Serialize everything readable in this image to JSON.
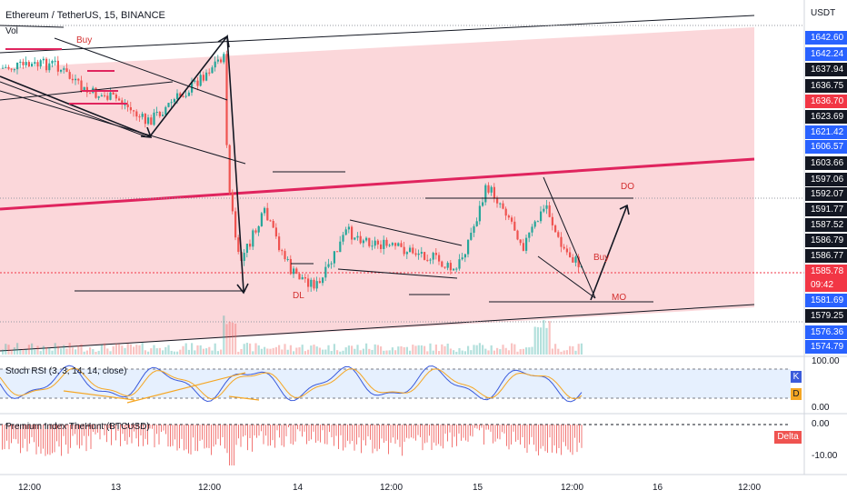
{
  "chart": {
    "symbol_title": "Ethereum / TetherUS, 15, BINANCE",
    "volume_label": "Vol",
    "currency": "USDT"
  },
  "price_axis_labels": [
    {
      "value": "1642.60",
      "kind": "blue"
    },
    {
      "value": "1642.24",
      "kind": "blue"
    },
    {
      "value": "1637.94",
      "kind": "black"
    },
    {
      "value": "1636.75",
      "kind": "black"
    },
    {
      "value": "1636.70",
      "kind": "pink"
    },
    {
      "value": "1623.69",
      "kind": "black"
    },
    {
      "value": "1621.42",
      "kind": "blue"
    },
    {
      "value": "1606.57",
      "kind": "blue"
    },
    {
      "value": "1603.66",
      "kind": "black"
    },
    {
      "value": "1597.06",
      "kind": "black"
    },
    {
      "value": "1592.07",
      "kind": "black"
    },
    {
      "value": "1591.77",
      "kind": "black"
    },
    {
      "value": "1587.52",
      "kind": "black"
    },
    {
      "value": "1586.79",
      "kind": "black"
    },
    {
      "value": "1586.77",
      "kind": "black"
    },
    {
      "value": "1585.78",
      "kind": "red"
    },
    {
      "value": "09:42",
      "kind": "red"
    },
    {
      "value": "1581.69",
      "kind": "blue"
    },
    {
      "value": "1579.25",
      "kind": "black"
    },
    {
      "value": "1576.36",
      "kind": "blue"
    },
    {
      "value": "1574.79",
      "kind": "blue"
    }
  ],
  "annotations": {
    "buy_top": "Buy",
    "dl": "DL",
    "do": "DO",
    "buy_right": "Buy",
    "mo": "MO"
  },
  "stoch_rsi": {
    "title": "Stoch RSI (3, 3, 14, 14, close)",
    "axis_top": "100.00",
    "axis_bottom": "0.00",
    "k_tag": "K",
    "d_tag": "D"
  },
  "premium_index": {
    "title": "Premium Index TheHunt (BTCUSD)",
    "axis_top": "0.00",
    "axis_bottom": "-10.00",
    "delta_tag": "Delta"
  },
  "time_axis": [
    "12:00",
    "13",
    "12:00",
    "14",
    "12:00",
    "15",
    "12:00",
    "16",
    "12:00"
  ],
  "colors": {
    "channel_fill": "#f9c9cd",
    "center_line": "#e0245e",
    "up_candle": "#26a69a",
    "down_candle": "#ef5350",
    "blue_label": "#2962ff",
    "red_label": "#f23645",
    "stoch_k": "#3b5bdb",
    "stoch_d": "#f5a623",
    "stoch_band": "#dbeafe"
  }
}
